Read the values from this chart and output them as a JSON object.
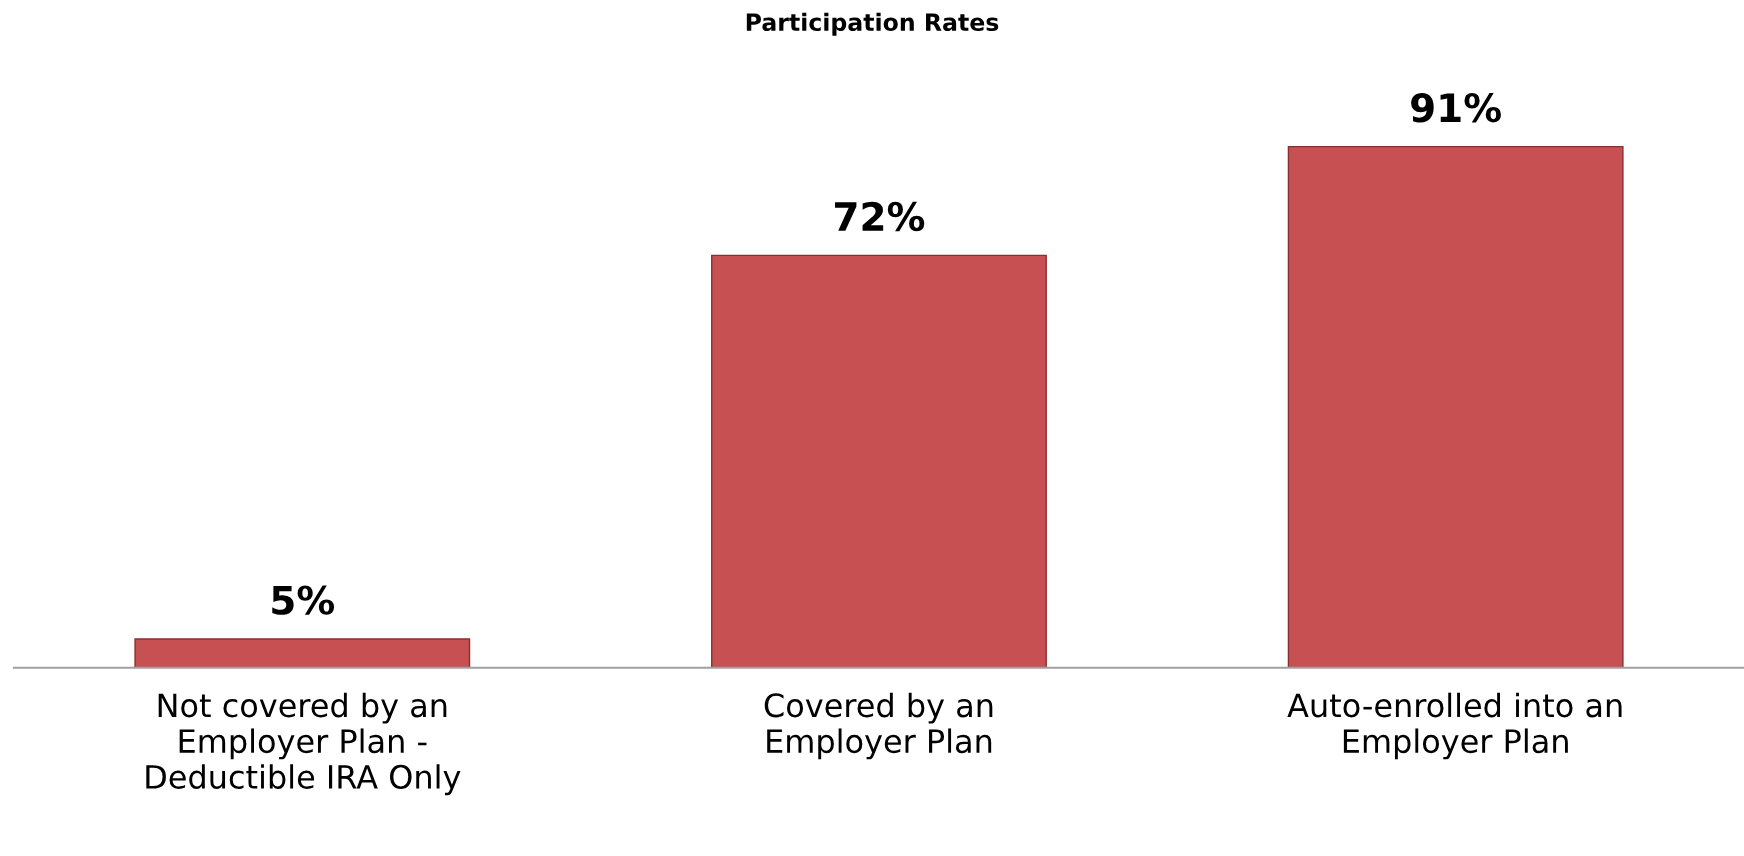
{
  "chart_data": {
    "type": "bar",
    "title": "Participation Rates",
    "categories": [
      "Not covered by an\nEmployer Plan -\nDeductible IRA Only",
      "Covered by an\nEmployer Plan",
      "Auto-enrolled into an\nEmployer Plan"
    ],
    "values": [
      5,
      72,
      91
    ],
    "value_labels": [
      "5%",
      "72%",
      "91%"
    ],
    "color": "#c65052",
    "tick_labels": "x"
  }
}
